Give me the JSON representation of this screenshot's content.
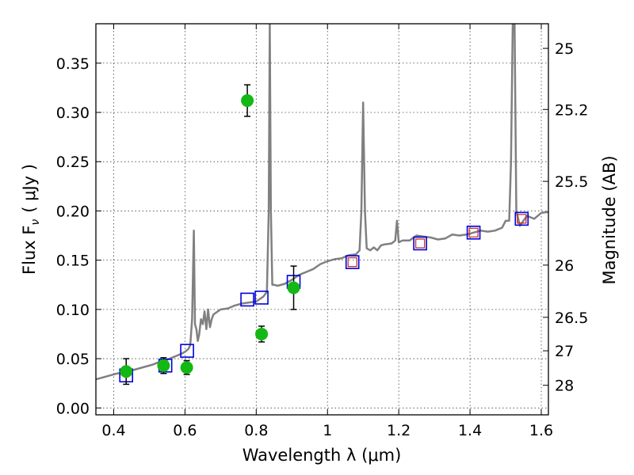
{
  "chart_data": {
    "type": "scatter",
    "xlabel": "Wavelength  λ (μm)",
    "ylabel": "Flux  F",
    "ylabel_subscript": "ν",
    "ylabel_unit": "( μJy )",
    "y2label": "Magnitude (AB)",
    "xlim": [
      0.35,
      1.62
    ],
    "ylim": [
      -0.007,
      0.39
    ],
    "grid": true,
    "x_ticks": [
      0.4,
      0.6,
      0.8,
      1.0,
      1.2,
      1.4,
      1.6
    ],
    "x_tick_labels": [
      "0.4",
      "0.6",
      "0.8",
      "1",
      "1.2",
      "1.4",
      "1.6"
    ],
    "y_ticks": [
      0.0,
      0.05,
      0.1,
      0.15,
      0.2,
      0.25,
      0.3,
      0.35
    ],
    "y_tick_labels": [
      "0.00",
      "0.05",
      "0.10",
      "0.15",
      "0.20",
      "0.25",
      "0.30",
      "0.35"
    ],
    "y2_ticks": [
      {
        "label": "25",
        "flux": 0.365
      },
      {
        "label": "25.2",
        "flux": 0.303
      },
      {
        "label": "25.5",
        "flux": 0.23
      },
      {
        "label": "26",
        "flux": 0.145
      },
      {
        "label": "26.5",
        "flux": 0.092
      },
      {
        "label": "27",
        "flux": 0.058
      },
      {
        "label": "28",
        "flux": 0.023
      }
    ],
    "colors": {
      "model": "#808080",
      "observed": "#14b814",
      "synthetic_box": "#0000dd",
      "synthetic_box_inner": "#cc2222",
      "errorbar": "#000000",
      "grid": "#444444"
    },
    "series": [
      {
        "name": "model-spectrum",
        "kind": "line",
        "x": [
          0.35,
          0.37,
          0.39,
          0.41,
          0.43,
          0.45,
          0.47,
          0.49,
          0.51,
          0.53,
          0.55,
          0.57,
          0.59,
          0.6,
          0.61,
          0.615,
          0.62,
          0.625,
          0.628,
          0.632,
          0.636,
          0.64,
          0.645,
          0.65,
          0.655,
          0.66,
          0.665,
          0.67,
          0.675,
          0.68,
          0.7,
          0.72,
          0.74,
          0.76,
          0.78,
          0.8,
          0.82,
          0.83,
          0.835,
          0.838,
          0.841,
          0.845,
          0.85,
          0.86,
          0.88,
          0.9,
          0.92,
          0.94,
          0.96,
          0.98,
          1.0,
          1.02,
          1.04,
          1.06,
          1.08,
          1.09,
          1.095,
          1.1,
          1.105,
          1.11,
          1.12,
          1.13,
          1.14,
          1.15,
          1.16,
          1.18,
          1.19,
          1.195,
          1.2,
          1.21,
          1.23,
          1.25,
          1.27,
          1.29,
          1.31,
          1.33,
          1.35,
          1.37,
          1.39,
          1.41,
          1.43,
          1.45,
          1.47,
          1.49,
          1.5,
          1.51,
          1.515,
          1.52,
          1.525,
          1.53,
          1.54,
          1.55,
          1.56,
          1.58,
          1.6,
          1.62
        ],
        "y": [
          0.029,
          0.031,
          0.033,
          0.035,
          0.036,
          0.038,
          0.04,
          0.042,
          0.044,
          0.047,
          0.049,
          0.052,
          0.055,
          0.057,
          0.06,
          0.064,
          0.09,
          0.18,
          0.085,
          0.08,
          0.068,
          0.075,
          0.09,
          0.085,
          0.098,
          0.08,
          0.1,
          0.082,
          0.09,
          0.095,
          0.1,
          0.101,
          0.104,
          0.106,
          0.107,
          0.108,
          0.113,
          0.118,
          0.2,
          0.39,
          0.2,
          0.125,
          0.125,
          0.124,
          0.126,
          0.13,
          0.135,
          0.138,
          0.141,
          0.146,
          0.149,
          0.151,
          0.152,
          0.155,
          0.156,
          0.16,
          0.2,
          0.31,
          0.2,
          0.162,
          0.16,
          0.163,
          0.16,
          0.165,
          0.166,
          0.167,
          0.17,
          0.19,
          0.168,
          0.17,
          0.17,
          0.175,
          0.174,
          0.173,
          0.171,
          0.172,
          0.176,
          0.175,
          0.176,
          0.178,
          0.18,
          0.179,
          0.18,
          0.183,
          0.19,
          0.19,
          0.25,
          0.39,
          0.39,
          0.2,
          0.185,
          0.19,
          0.195,
          0.192,
          0.198,
          0.199
        ]
      },
      {
        "name": "observed-photometry",
        "kind": "scatter-errorbar",
        "x": [
          0.435,
          0.54,
          0.605,
          0.775,
          0.815,
          0.905
        ],
        "y": [
          0.037,
          0.043,
          0.041,
          0.312,
          0.075,
          0.122
        ],
        "yerr": [
          0.013,
          0.008,
          0.007,
          0.016,
          0.008,
          0.022
        ]
      },
      {
        "name": "synthetic-photometry",
        "kind": "open-square",
        "x": [
          0.435,
          0.545,
          0.606,
          0.775,
          0.815,
          0.905,
          1.07,
          1.26,
          1.41,
          1.545
        ],
        "y": [
          0.033,
          0.043,
          0.058,
          0.11,
          0.112,
          0.128,
          0.148,
          0.167,
          0.178,
          0.192
        ]
      }
    ]
  }
}
